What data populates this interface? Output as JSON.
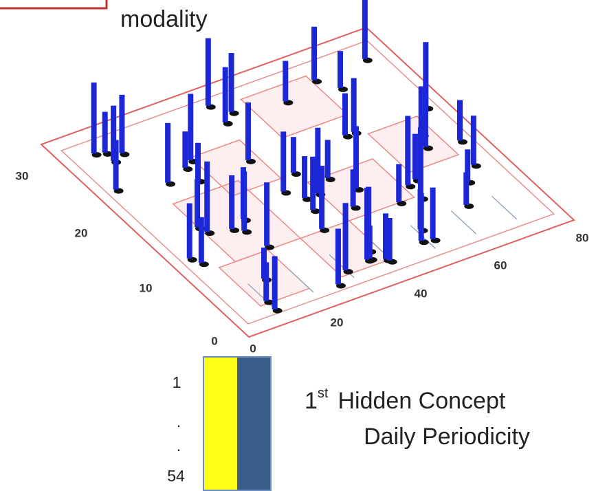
{
  "legend_box": {
    "label": "modality"
  },
  "left_axis": {
    "ticks": [
      "30",
      "20",
      "10",
      "0"
    ]
  },
  "right_axis": {
    "ticks": [
      "0",
      "20",
      "40",
      "60",
      "80"
    ]
  },
  "colorbar": {
    "labels": [
      "1",
      ".",
      ".",
      "54"
    ]
  },
  "caption": {
    "ordinal": "1",
    "suffix": "st",
    "line1": "Hidden Concept",
    "line2": "Daily Periodicity"
  }
}
